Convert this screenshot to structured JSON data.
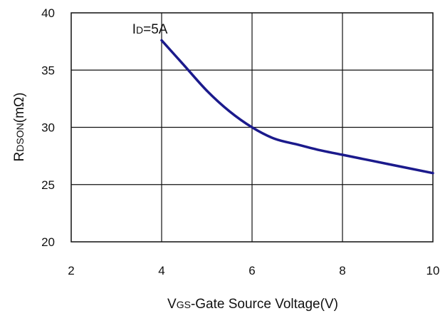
{
  "chart_data": {
    "type": "line",
    "x": [
      4,
      4.5,
      5,
      5.5,
      6,
      6.5,
      7,
      7.5,
      8,
      9,
      10
    ],
    "series": [
      {
        "values": [
          37.6,
          35.4,
          33.2,
          31.4,
          30.0,
          29.0,
          28.5,
          28.0,
          27.6,
          26.8,
          26.0
        ],
        "color": "#1b1a8c"
      }
    ],
    "xlim": [
      2,
      10
    ],
    "ylim": [
      20,
      40
    ],
    "xticks": [
      2,
      4,
      6,
      8,
      10
    ],
    "yticks": [
      20,
      25,
      30,
      35,
      40
    ],
    "grid": true,
    "annotation": {
      "x": 3.35,
      "y": 38.2
    },
    "colors": {
      "grid": "#111111",
      "line": "#1b1a8c"
    }
  },
  "text": {
    "ylabel_main": "R",
    "ylabel_sub": "DSON",
    "ylabel_unit": "(mΩ)",
    "xlabel_main": "V",
    "xlabel_sub": "GS",
    "xlabel_rest": "-Gate Source Voltage(V)",
    "annotation_main": "I",
    "annotation_sub": "D",
    "annotation_rest": "=5A"
  }
}
